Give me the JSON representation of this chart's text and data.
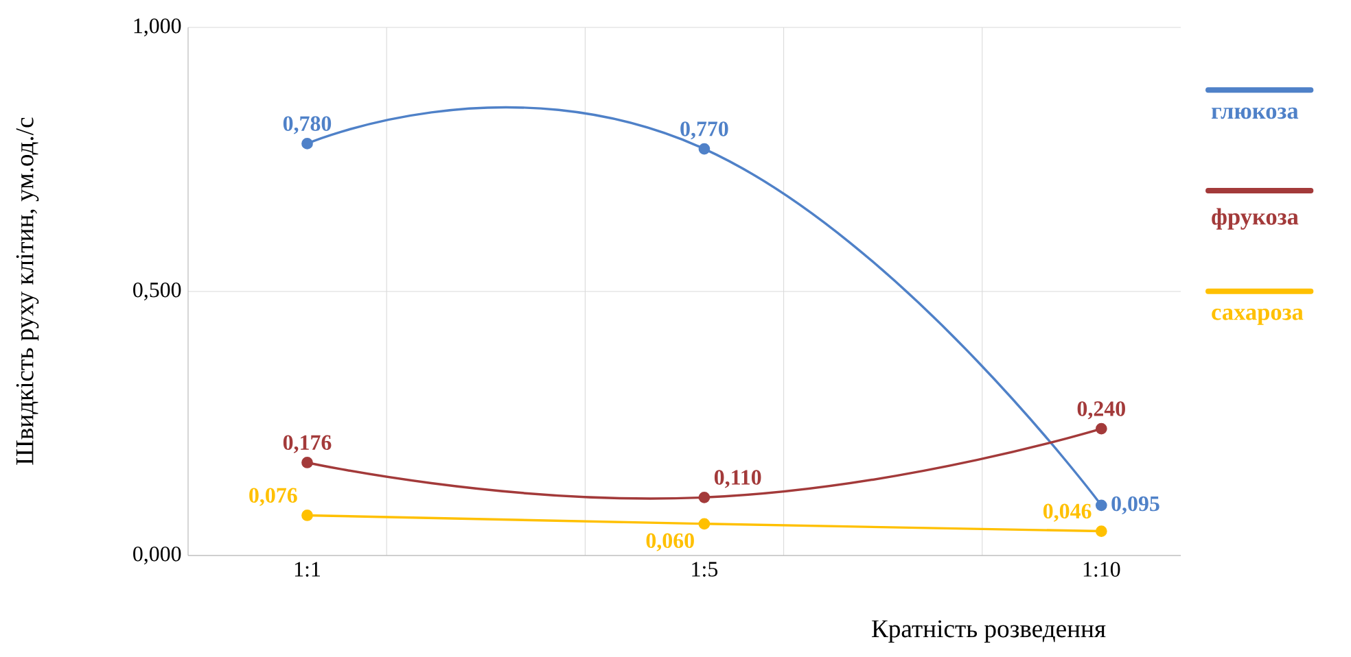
{
  "chart_data": {
    "type": "line",
    "xlabel": "Кратність розведення",
    "ylabel": "Швидкість руху клітин, ум.од./с",
    "categories": [
      "1:1",
      "1:5",
      "1:10"
    ],
    "ylim": [
      0,
      1
    ],
    "yticks": [
      {
        "value": 0,
        "label": "0,000"
      },
      {
        "value": 0.5,
        "label": "0,500"
      },
      {
        "value": 1,
        "label": "1,000"
      }
    ],
    "grid": true,
    "legend": "right",
    "marker": "circle",
    "line_style": "solid",
    "series": [
      {
        "name": "глюкоза",
        "color": "#4f81c8",
        "values": [
          0.78,
          0.77,
          0.095
        ],
        "value_labels": [
          "0,780",
          "0,770",
          "0,095"
        ]
      },
      {
        "name": "фрукоза",
        "color": "#a33a3a",
        "values": [
          0.176,
          0.11,
          0.24
        ],
        "value_labels": [
          "0,176",
          "0,110",
          "0,240"
        ]
      },
      {
        "name": "сахароза",
        "color": "#ffc000",
        "values": [
          0.076,
          0.06,
          0.046
        ],
        "value_labels": [
          "0,076",
          "0,060",
          "0,046"
        ]
      }
    ]
  }
}
